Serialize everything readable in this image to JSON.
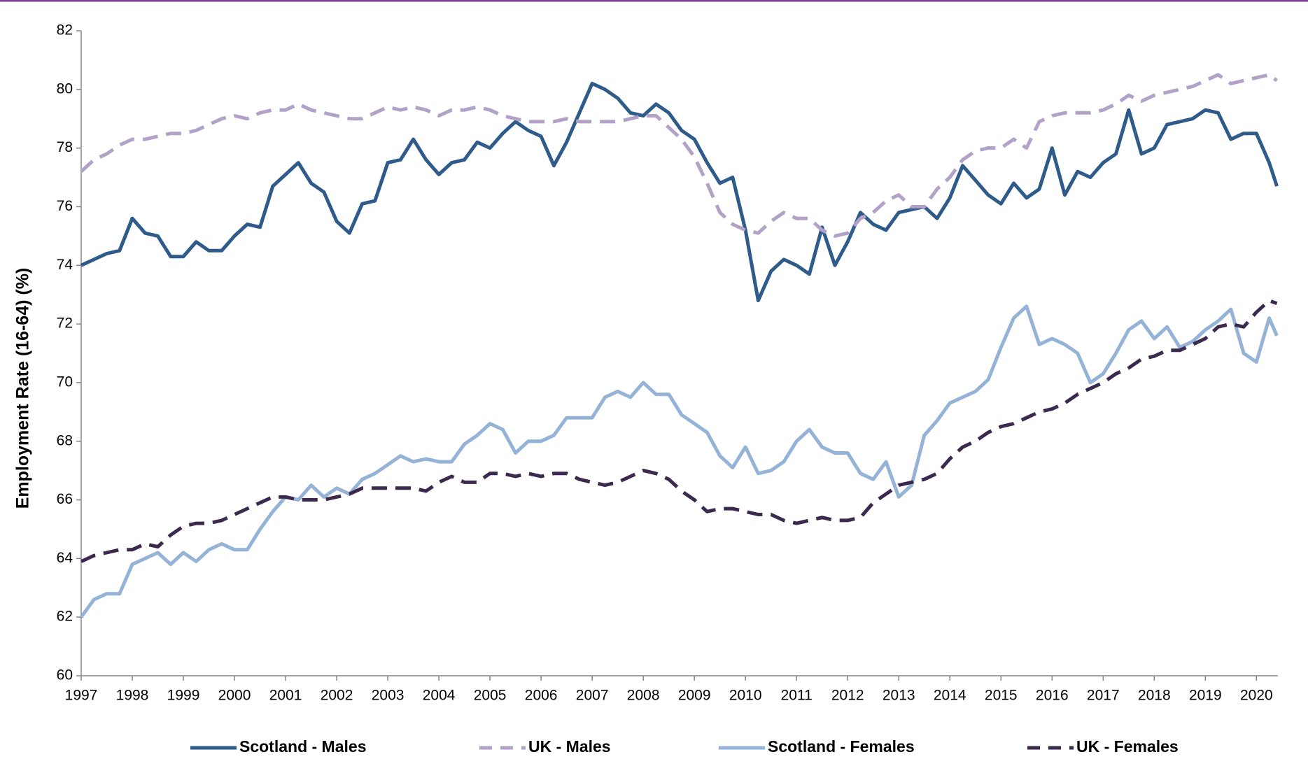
{
  "chart_data": {
    "type": "line",
    "y_label": "Employment Rate (16-64) (%)",
    "xlim": [
      1997,
      2020.42
    ],
    "xticks": [
      1997,
      1998,
      1999,
      2000,
      2001,
      2002,
      2003,
      2004,
      2005,
      2006,
      2007,
      2008,
      2009,
      2010,
      2011,
      2012,
      2013,
      2014,
      2015,
      2016,
      2017,
      2018,
      2019,
      2020
    ],
    "ylim": [
      60,
      82
    ],
    "yticks": [
      60,
      62,
      64,
      66,
      68,
      70,
      72,
      74,
      76,
      78,
      80,
      82
    ],
    "grid": false,
    "legend": "bottom",
    "x": [
      1997,
      1997.25,
      1997.5,
      1997.75,
      1998,
      1998.25,
      1998.5,
      1998.75,
      1999,
      1999.25,
      1999.5,
      1999.75,
      2000,
      2000.25,
      2000.5,
      2000.75,
      2001,
      2001.25,
      2001.5,
      2001.75,
      2002,
      2002.25,
      2002.5,
      2002.75,
      2003,
      2003.25,
      2003.5,
      2003.75,
      2004,
      2004.25,
      2004.5,
      2004.75,
      2005,
      2005.25,
      2005.5,
      2005.75,
      2006,
      2006.25,
      2006.5,
      2006.75,
      2007,
      2007.25,
      2007.5,
      2007.75,
      2008,
      2008.25,
      2008.5,
      2008.75,
      2009,
      2009.25,
      2009.5,
      2009.75,
      2010,
      2010.25,
      2010.5,
      2010.75,
      2011,
      2011.25,
      2011.5,
      2011.75,
      2012,
      2012.25,
      2012.5,
      2012.75,
      2013,
      2013.25,
      2013.5,
      2013.75,
      2014,
      2014.25,
      2014.5,
      2014.75,
      2015,
      2015.25,
      2015.5,
      2015.75,
      2016,
      2016.25,
      2016.5,
      2016.75,
      2017,
      2017.25,
      2017.5,
      2017.75,
      2018,
      2018.25,
      2018.5,
      2018.75,
      2019,
      2019.25,
      2019.5,
      2019.75,
      2020,
      2020.25,
      2020.4
    ],
    "series": [
      {
        "name": "Scotland - Males",
        "color": "#2e5b8a",
        "dashed": false,
        "values": [
          74.0,
          74.2,
          74.4,
          74.5,
          75.6,
          75.1,
          75.0,
          74.3,
          74.3,
          74.8,
          74.5,
          74.5,
          75.0,
          75.4,
          75.3,
          76.7,
          77.1,
          77.5,
          76.8,
          76.5,
          75.5,
          75.1,
          76.1,
          76.2,
          77.5,
          77.6,
          78.3,
          77.6,
          77.1,
          77.5,
          77.6,
          78.2,
          78.0,
          78.5,
          78.9,
          78.6,
          78.4,
          77.4,
          78.2,
          79.2,
          80.2,
          80.0,
          79.7,
          79.2,
          79.1,
          79.5,
          79.2,
          78.6,
          78.3,
          77.5,
          76.8,
          77.0,
          75.2,
          72.8,
          73.8,
          74.2,
          74.0,
          73.7,
          75.3,
          74.0,
          74.8,
          75.8,
          75.4,
          75.2,
          75.8,
          75.9,
          76.0,
          75.6,
          76.3,
          77.4,
          76.9,
          76.4,
          76.1,
          76.8,
          76.3,
          76.6,
          78.0,
          76.4,
          77.2,
          77.0,
          77.5,
          77.8,
          79.3,
          77.8,
          78.0,
          78.8,
          78.9,
          79.0,
          79.3,
          79.2,
          78.3,
          78.5,
          78.5,
          77.5,
          76.7
        ]
      },
      {
        "name": "UK - Males",
        "color": "#b3a2c7",
        "dashed": true,
        "values": [
          77.2,
          77.6,
          77.8,
          78.1,
          78.3,
          78.3,
          78.4,
          78.5,
          78.5,
          78.6,
          78.8,
          79.0,
          79.1,
          79.0,
          79.2,
          79.3,
          79.3,
          79.5,
          79.3,
          79.2,
          79.1,
          79.0,
          79.0,
          79.2,
          79.4,
          79.3,
          79.4,
          79.3,
          79.1,
          79.3,
          79.3,
          79.4,
          79.3,
          79.1,
          79.0,
          78.9,
          78.9,
          78.9,
          79.0,
          78.9,
          78.9,
          78.9,
          78.9,
          79.0,
          79.1,
          79.1,
          78.7,
          78.3,
          77.7,
          76.8,
          75.8,
          75.4,
          75.2,
          75.1,
          75.5,
          75.8,
          75.6,
          75.6,
          75.2,
          75.0,
          75.1,
          75.6,
          75.8,
          76.2,
          76.4,
          76.0,
          76.0,
          76.6,
          77.0,
          77.6,
          77.9,
          78.0,
          78.0,
          78.3,
          78.0,
          78.9,
          79.1,
          79.2,
          79.2,
          79.2,
          79.3,
          79.5,
          79.8,
          79.6,
          79.8,
          79.9,
          80.0,
          80.1,
          80.3,
          80.5,
          80.2,
          80.3,
          80.4,
          80.5,
          80.3
        ]
      },
      {
        "name": "Scotland - Females",
        "color": "#95b3d7",
        "dashed": false,
        "values": [
          62.0,
          62.6,
          62.8,
          62.8,
          63.8,
          64.0,
          64.2,
          63.8,
          64.2,
          63.9,
          64.3,
          64.5,
          64.3,
          64.3,
          65.0,
          65.6,
          66.1,
          66.0,
          66.5,
          66.1,
          66.4,
          66.2,
          66.7,
          66.9,
          67.2,
          67.5,
          67.3,
          67.4,
          67.3,
          67.3,
          67.9,
          68.2,
          68.6,
          68.4,
          67.6,
          68.0,
          68.0,
          68.2,
          68.8,
          68.8,
          68.8,
          69.5,
          69.7,
          69.5,
          70.0,
          69.6,
          69.6,
          68.9,
          68.6,
          68.3,
          67.5,
          67.1,
          67.8,
          66.9,
          67.0,
          67.3,
          68.0,
          68.4,
          67.8,
          67.6,
          67.6,
          66.9,
          66.7,
          67.3,
          66.1,
          66.5,
          68.2,
          68.7,
          69.3,
          69.5,
          69.7,
          70.1,
          71.2,
          72.2,
          72.6,
          71.3,
          71.5,
          71.3,
          71.0,
          70.0,
          70.3,
          71.0,
          71.8,
          72.1,
          71.5,
          71.9,
          71.2,
          71.4,
          71.8,
          72.1,
          72.5,
          71.0,
          70.7,
          72.2,
          71.6
        ]
      },
      {
        "name": "UK - Females",
        "color": "#3b2a4e",
        "dashed": true,
        "values": [
          63.9,
          64.1,
          64.2,
          64.3,
          64.3,
          64.5,
          64.4,
          64.8,
          65.1,
          65.2,
          65.2,
          65.3,
          65.5,
          65.7,
          65.9,
          66.1,
          66.1,
          66.0,
          66.0,
          66.0,
          66.1,
          66.2,
          66.4,
          66.4,
          66.4,
          66.4,
          66.4,
          66.3,
          66.6,
          66.8,
          66.6,
          66.6,
          66.9,
          66.9,
          66.8,
          66.9,
          66.8,
          66.9,
          66.9,
          66.7,
          66.6,
          66.5,
          66.6,
          66.8,
          67.0,
          66.9,
          66.7,
          66.3,
          66.0,
          65.6,
          65.7,
          65.7,
          65.6,
          65.5,
          65.5,
          65.3,
          65.2,
          65.3,
          65.4,
          65.3,
          65.3,
          65.4,
          65.9,
          66.2,
          66.5,
          66.6,
          66.7,
          66.9,
          67.4,
          67.8,
          68.0,
          68.3,
          68.5,
          68.6,
          68.8,
          69.0,
          69.1,
          69.3,
          69.6,
          69.8,
          70.0,
          70.3,
          70.5,
          70.8,
          70.9,
          71.1,
          71.1,
          71.3,
          71.5,
          71.9,
          72.0,
          71.9,
          72.4,
          72.8,
          72.7
        ]
      }
    ]
  }
}
